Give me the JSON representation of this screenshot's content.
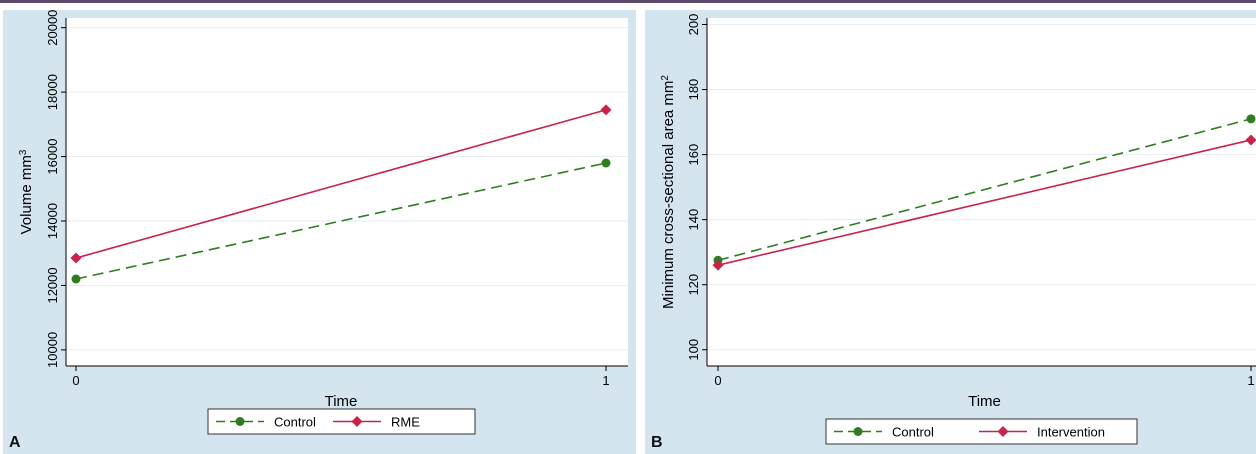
{
  "chart_data": [
    {
      "panel_label": "A",
      "type": "line",
      "xlabel": "Time",
      "ylabel": "Volume mm",
      "ylabel_superscript": "3",
      "x": [
        0,
        1
      ],
      "x_ticks": [
        "0",
        "1"
      ],
      "y_ticks": [
        10000,
        12000,
        14000,
        16000,
        18000,
        20000
      ],
      "ylim": [
        9500,
        20300
      ],
      "grid": true,
      "legend_position": "bottom",
      "series": [
        {
          "name": "Control",
          "values": [
            12200,
            15800
          ],
          "color": "#2e7d1f",
          "dash": true,
          "marker": "circle"
        },
        {
          "name": "RME",
          "values": [
            12850,
            17450
          ],
          "color": "#c8234a",
          "dash": false,
          "marker": "diamond"
        }
      ]
    },
    {
      "panel_label": "B",
      "type": "line",
      "xlabel": "Time",
      "ylabel": "Minimum cross-sectional area mm",
      "ylabel_superscript": "2",
      "x": [
        0,
        1
      ],
      "x_ticks": [
        "0",
        "1"
      ],
      "y_ticks": [
        100,
        120,
        140,
        160,
        180,
        200
      ],
      "ylim": [
        95,
        202
      ],
      "grid": true,
      "legend_position": "bottom",
      "series": [
        {
          "name": "Control",
          "values": [
            127.5,
            171
          ],
          "color": "#2e7d1f",
          "dash": true,
          "marker": "circle"
        },
        {
          "name": "Intervention",
          "values": [
            126,
            164.5
          ],
          "color": "#c8234a",
          "dash": false,
          "marker": "diamond"
        }
      ]
    }
  ]
}
